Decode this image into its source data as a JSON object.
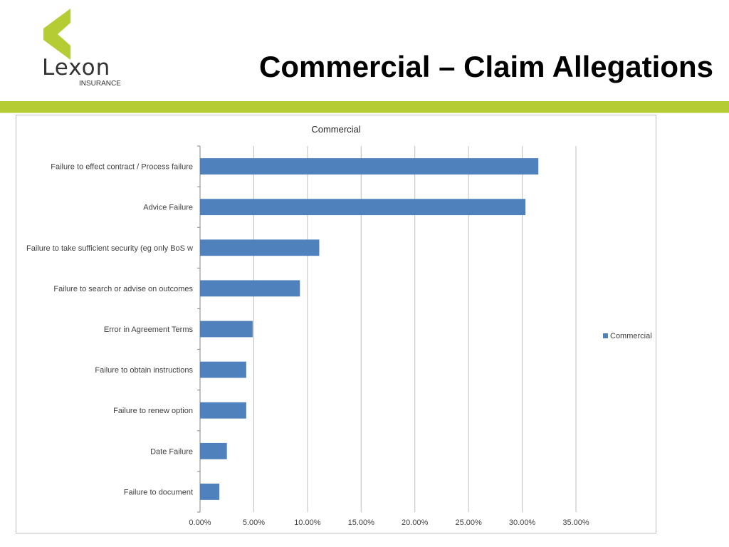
{
  "slide": {
    "title": "Commercial – Claim Allegations"
  },
  "logo": {
    "name": "Lexon",
    "subtitle": "INSURANCE",
    "color": "#b5cc34",
    "text_color": "#333333"
  },
  "colors": {
    "accent": "#b5cc34",
    "bar": "#4f81bd",
    "grid": "#bfbfbf"
  },
  "chart_data": {
    "type": "bar",
    "orientation": "horizontal",
    "title": "Commercial",
    "categories": [
      "Failure to effect contract / Process failure",
      "Advice Failure",
      "Failure to take sufficient security (eg only BoS w",
      "Failure to search or advise on outcomes",
      "Error in Agreement Terms",
      "Failure to obtain instructions",
      "Failure to renew option",
      "Date Failure",
      "Failure to document"
    ],
    "series": [
      {
        "name": "Commercial",
        "color": "#4f81bd",
        "values": [
          31.5,
          30.3,
          11.1,
          9.3,
          4.9,
          4.3,
          4.3,
          2.5,
          1.8
        ]
      }
    ],
    "xlim": [
      0,
      35
    ],
    "x_ticks": [
      0,
      5,
      10,
      15,
      20,
      25,
      30,
      35
    ],
    "x_tick_labels": [
      "0.00%",
      "5.00%",
      "10.00%",
      "15.00%",
      "20.00%",
      "25.00%",
      "30.00%",
      "35.00%"
    ],
    "gridlines": true,
    "legend_position": "right"
  }
}
